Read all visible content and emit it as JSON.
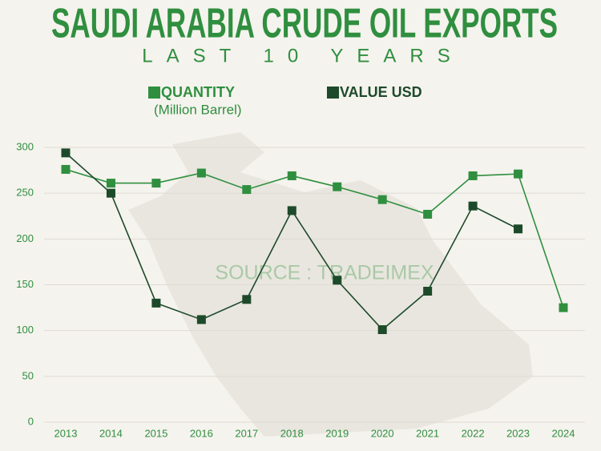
{
  "chart_data": {
    "type": "line",
    "title": "SAUDI ARABIA CRUDE OIL EXPORTS",
    "subtitle": "LAST 10 YEARS",
    "legend_note": "(Million Barrel)",
    "annotation": "SOURCE : TRADEIMEX",
    "categories": [
      "2013",
      "2014",
      "2015",
      "2016",
      "2017",
      "2018",
      "2019",
      "2020",
      "2021",
      "2022",
      "2023",
      "2024"
    ],
    "series": [
      {
        "name": "QUANTITY",
        "color": "#2f8f3f",
        "values": [
          276,
          261,
          261,
          272,
          254,
          269,
          257,
          243,
          227,
          269,
          271,
          125
        ]
      },
      {
        "name": "VALUE USD",
        "color": "#1d4a2a",
        "values": [
          294,
          250,
          130,
          112,
          134,
          231,
          155,
          101,
          143,
          236,
          211,
          null
        ]
      }
    ],
    "ylim": [
      0,
      300
    ],
    "yticks": [
      0,
      50,
      100,
      150,
      200,
      250,
      300
    ],
    "grid": true
  }
}
